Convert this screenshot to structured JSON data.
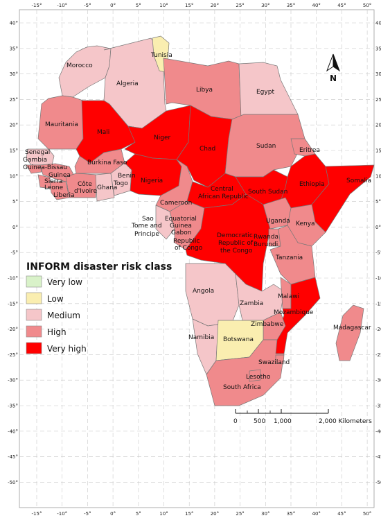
{
  "colors": {
    "very_low": "#d9f2c9",
    "low": "#faeeb0",
    "medium": "#f5c6c9",
    "high": "#f08a8c",
    "very_high": "#ff0000",
    "background": "#ffffff",
    "grid": "#c8c8c8"
  },
  "x_ticks": [
    "-15°",
    "-10°",
    "-5°",
    "0°",
    "5°",
    "10°",
    "15°",
    "20°",
    "25°",
    "30°",
    "35°",
    "40°",
    "45°",
    "50°"
  ],
  "y_ticks": [
    "40°",
    "35°",
    "30°",
    "25°",
    "20°",
    "15°",
    "10°",
    "5°",
    "0°",
    "-5°",
    "-10°",
    "-15°",
    "-20°",
    "-25°",
    "-30°",
    "-35°",
    "-40°",
    "-45°",
    "-50°"
  ],
  "legend": {
    "title": "INFORM disaster risk class",
    "items": [
      {
        "label": "Very low",
        "color": "#d9f2c9"
      },
      {
        "label": "Low",
        "color": "#faeeb0"
      },
      {
        "label": "Medium",
        "color": "#f5c6c9"
      },
      {
        "label": "High",
        "color": "#f08a8c"
      },
      {
        "label": "Very high",
        "color": "#ff0000"
      }
    ]
  },
  "north_arrow": {
    "label": "N"
  },
  "scale_bar": {
    "labels": [
      "0",
      "500",
      "1,000",
      "2,000 Kilometers"
    ]
  },
  "countries": {
    "morocco": {
      "name": "Morocco",
      "risk": "medium"
    },
    "algeria": {
      "name": "Algeria",
      "risk": "medium"
    },
    "tunisia": {
      "name": "Tunisia",
      "risk": "low"
    },
    "libya": {
      "name": "Libya",
      "risk": "high"
    },
    "egypt": {
      "name": "Egypt",
      "risk": "medium"
    },
    "mauritania": {
      "name": "Mauritania",
      "risk": "high"
    },
    "mali": {
      "name": "Mali",
      "risk": "very_high"
    },
    "niger": {
      "name": "Niger",
      "risk": "very_high"
    },
    "chad": {
      "name": "Chad",
      "risk": "very_high"
    },
    "sudan": {
      "name": "Sudan",
      "risk": "high"
    },
    "eritrea": {
      "name": "Eritrea",
      "risk": "high"
    },
    "senegal": {
      "name": "Senegal",
      "risk": "medium"
    },
    "gambia": {
      "name": "Gambia",
      "risk": "medium"
    },
    "guinea_bissau": {
      "name": "Guinea-Bissau",
      "risk": "high"
    },
    "guinea": {
      "name": "Guinea",
      "risk": "high"
    },
    "sierra_leone": {
      "name": "Sierra",
      "risk": "high"
    },
    "sierra_leone_2": {
      "name": "Leone",
      "risk": "high"
    },
    "liberia": {
      "name": "Liberia",
      "risk": "high"
    },
    "cote_divoire": {
      "name": "Côte",
      "risk": "high"
    },
    "cote_divoire_2": {
      "name": "d'Ivoire",
      "risk": "high"
    },
    "burkina_faso": {
      "name": "Burkina Faso",
      "risk": "high"
    },
    "ghana": {
      "name": "Ghana",
      "risk": "medium"
    },
    "benin": {
      "name": "Benin",
      "risk": "medium"
    },
    "togo": {
      "name": "Togo",
      "risk": "medium"
    },
    "nigeria": {
      "name": "Nigeria",
      "risk": "very_high"
    },
    "cameroon": {
      "name": "Cameroon",
      "risk": "high"
    },
    "car": {
      "name": "Central",
      "risk": "very_high"
    },
    "car_2": {
      "name": "African Republic",
      "risk": "very_high"
    },
    "south_sudan": {
      "name": "South Sudan",
      "risk": "very_high"
    },
    "ethiopia": {
      "name": "Ethiopia",
      "risk": "very_high"
    },
    "somalia": {
      "name": "Somalia",
      "risk": "very_high"
    },
    "sao_tome": {
      "name": "Sao",
      "risk": "medium"
    },
    "sao_tome_2": {
      "name": "Tome and",
      "risk": "medium"
    },
    "sao_tome_3": {
      "name": "Principe",
      "risk": "medium"
    },
    "eq_guinea": {
      "name": "Equatorial",
      "risk": "medium"
    },
    "eq_guinea_2": {
      "name": "Guinea",
      "risk": "medium"
    },
    "gabon": {
      "name": "Gabon",
      "risk": "medium"
    },
    "congo": {
      "name": "Republic",
      "risk": "high"
    },
    "congo_2": {
      "name": "of Congo",
      "risk": "high"
    },
    "drc": {
      "name": "Democratic",
      "risk": "very_high"
    },
    "drc_2": {
      "name": "Republic of",
      "risk": "very_high"
    },
    "drc_3": {
      "name": "the Congo",
      "risk": "very_high"
    },
    "uganda": {
      "name": "Uganda",
      "risk": "high"
    },
    "kenya": {
      "name": "Kenya",
      "risk": "high"
    },
    "rwanda": {
      "name": "Rwanda",
      "risk": "high"
    },
    "burundi": {
      "name": "Burundi",
      "risk": "high"
    },
    "tanzania": {
      "name": "Tanzania",
      "risk": "high"
    },
    "angola": {
      "name": "Angola",
      "risk": "medium"
    },
    "zambia": {
      "name": "Zambia",
      "risk": "medium"
    },
    "malawi": {
      "name": "Malawi",
      "risk": "high"
    },
    "mozambique": {
      "name": "Mozambique",
      "risk": "very_high"
    },
    "zimbabwe": {
      "name": "Zimbabwe",
      "risk": "high"
    },
    "namibia": {
      "name": "Namibia",
      "risk": "medium"
    },
    "botswana": {
      "name": "Botswana",
      "risk": "low"
    },
    "madagascar": {
      "name": "Madagascar",
      "risk": "high"
    },
    "swaziland": {
      "name": "Swaziland",
      "risk": "high"
    },
    "lesotho": {
      "name": "Lesotho",
      "risk": "high"
    },
    "south_africa": {
      "name": "South Africa",
      "risk": "high"
    }
  }
}
